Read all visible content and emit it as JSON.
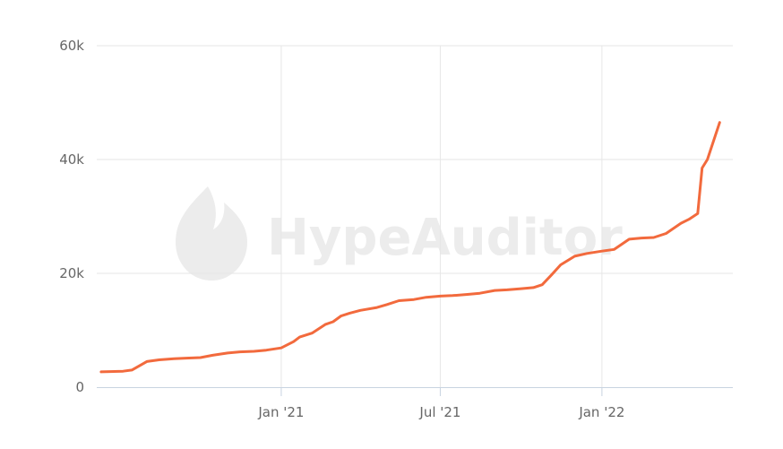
{
  "watermark": "HypeAuditor",
  "chart_data": {
    "type": "line",
    "title": "",
    "xlabel": "",
    "ylabel": "",
    "x_ticks": [
      {
        "date": "2021-01-01",
        "label": "Jan '21"
      },
      {
        "date": "2021-07-01",
        "label": "Jul '21"
      },
      {
        "date": "2022-01-01",
        "label": "Jan '22"
      }
    ],
    "y_ticks": [
      {
        "value": 0,
        "label": "0"
      },
      {
        "value": 20000,
        "label": "20k"
      },
      {
        "value": 40000,
        "label": "40k"
      },
      {
        "value": 60000,
        "label": "60k"
      }
    ],
    "xlim": [
      "2020-06-05",
      "2022-05-30"
    ],
    "ylim": [
      0,
      60000
    ],
    "grid": true,
    "line_color": "#f26a3d",
    "series": [
      {
        "x": [
          "2020-06-10",
          "2020-07-05",
          "2020-07-15",
          "2020-08-01",
          "2020-08-15",
          "2020-09-01",
          "2020-09-15",
          "2020-10-01",
          "2020-10-15",
          "2020-11-01",
          "2020-11-15",
          "2020-12-01",
          "2020-12-15",
          "2021-01-01",
          "2021-01-15",
          "2021-01-22",
          "2021-02-05",
          "2021-02-20",
          "2021-03-01",
          "2021-03-10",
          "2021-03-20",
          "2021-04-01",
          "2021-04-20",
          "2021-05-01",
          "2021-05-15",
          "2021-06-01",
          "2021-06-15",
          "2021-07-01",
          "2021-07-15",
          "2021-08-01",
          "2021-08-15",
          "2021-09-01",
          "2021-09-15",
          "2021-10-01",
          "2021-10-15",
          "2021-10-25",
          "2021-11-05",
          "2021-11-15",
          "2021-12-01",
          "2021-12-15",
          "2022-01-01",
          "2022-01-15",
          "2022-02-01",
          "2022-02-15",
          "2022-03-01",
          "2022-03-15",
          "2022-04-01",
          "2022-04-10",
          "2022-04-15",
          "2022-04-20",
          "2022-04-25",
          "2022-05-01",
          "2022-05-15"
        ],
        "y": [
          2700,
          2800,
          3000,
          4500,
          4800,
          5000,
          5100,
          5200,
          5600,
          6000,
          6200,
          6300,
          6500,
          6900,
          8000,
          8800,
          9500,
          11000,
          11500,
          12500,
          13000,
          13500,
          14000,
          14500,
          15200,
          15400,
          15800,
          16000,
          16100,
          16300,
          16500,
          17000,
          17100,
          17300,
          17500,
          18000,
          19800,
          21500,
          23000,
          23500,
          23900,
          24200,
          26000,
          26200,
          26300,
          27000,
          28800,
          29500,
          30000,
          30500,
          38500,
          40000,
          46500
        ]
      }
    ]
  }
}
